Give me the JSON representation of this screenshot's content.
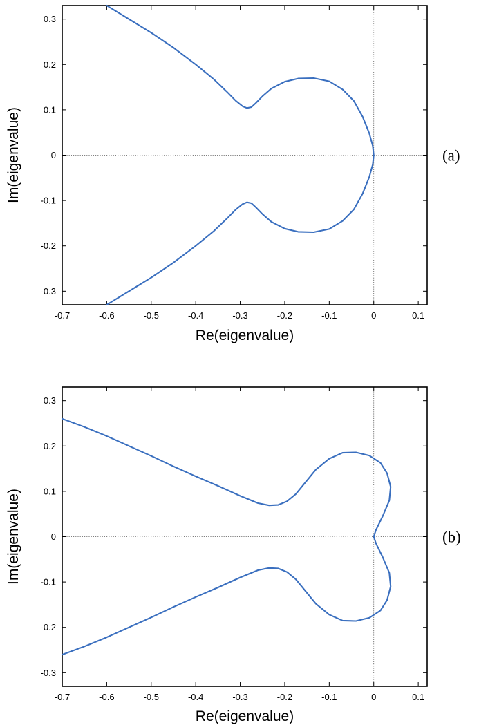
{
  "chart_data": [
    {
      "type": "line",
      "panel_label": "(a)",
      "xlabel": "Re(eigenvalue)",
      "ylabel": "Im(eigenvalue)",
      "xlim": [
        -0.7,
        0.12
      ],
      "ylim": [
        -0.33,
        0.33
      ],
      "xticks": [
        -0.7,
        -0.6,
        -0.5,
        -0.4,
        -0.3,
        -0.2,
        -0.1,
        0,
        0.1
      ],
      "xtick_labels": [
        "-0.7",
        "-0.6",
        "-0.5",
        "-0.4",
        "-0.3",
        "-0.2",
        "-0.1",
        "0",
        "0.1"
      ],
      "yticks": [
        -0.3,
        -0.2,
        -0.1,
        0,
        0.1,
        0.2,
        0.3
      ],
      "ytick_labels": [
        "-0.3",
        "-0.2",
        "-0.1",
        "0",
        "0.1",
        "0.2",
        "0.3"
      ],
      "zero_lines": true,
      "grid": false,
      "line_color": "#3a6fbf",
      "series": [
        {
          "x": [
            -0.6,
            -0.55,
            -0.5,
            -0.45,
            -0.4,
            -0.36,
            -0.33,
            -0.31,
            -0.295,
            -0.285,
            -0.275,
            -0.265,
            -0.25,
            -0.23,
            -0.2,
            -0.17,
            -0.135,
            -0.1,
            -0.07,
            -0.045,
            -0.025,
            -0.01,
            -0.002,
            0,
            -0.002,
            -0.01,
            -0.025,
            -0.045,
            -0.07,
            -0.1,
            -0.135,
            -0.17,
            -0.2,
            -0.23,
            -0.25,
            -0.265,
            -0.275,
            -0.285,
            -0.295,
            -0.31,
            -0.33,
            -0.36,
            -0.4,
            -0.45,
            -0.5,
            -0.55,
            -0.6
          ],
          "y": [
            0.33,
            0.3,
            0.27,
            0.237,
            0.2,
            0.168,
            0.14,
            0.12,
            0.108,
            0.104,
            0.106,
            0.115,
            0.13,
            0.147,
            0.162,
            0.169,
            0.17,
            0.163,
            0.145,
            0.12,
            0.085,
            0.048,
            0.02,
            0,
            -0.02,
            -0.048,
            -0.085,
            -0.12,
            -0.145,
            -0.163,
            -0.17,
            -0.169,
            -0.162,
            -0.147,
            -0.13,
            -0.115,
            -0.106,
            -0.104,
            -0.108,
            -0.12,
            -0.14,
            -0.168,
            -0.2,
            -0.237,
            -0.27,
            -0.3,
            -0.33
          ]
        }
      ]
    },
    {
      "type": "line",
      "panel_label": "(b)",
      "xlabel": "Re(eigenvalue)",
      "ylabel": "Im(eigenvalue)",
      "xlim": [
        -0.7,
        0.12
      ],
      "ylim": [
        -0.33,
        0.33
      ],
      "xticks": [
        -0.7,
        -0.6,
        -0.5,
        -0.4,
        -0.3,
        -0.2,
        -0.1,
        0,
        0.1
      ],
      "xtick_labels": [
        "-0.7",
        "-0.6",
        "-0.5",
        "-0.4",
        "-0.3",
        "-0.2",
        "-0.1",
        "0",
        "0.1"
      ],
      "yticks": [
        -0.3,
        -0.2,
        -0.1,
        0,
        0.1,
        0.2,
        0.3
      ],
      "ytick_labels": [
        "-0.3",
        "-0.2",
        "-0.1",
        "0",
        "0.1",
        "0.2",
        "0.3"
      ],
      "zero_lines": true,
      "grid": false,
      "line_color": "#3a6fbf",
      "series": [
        {
          "x": [
            -0.7,
            -0.65,
            -0.6,
            -0.55,
            -0.5,
            -0.45,
            -0.4,
            -0.35,
            -0.3,
            -0.26,
            -0.235,
            -0.215,
            -0.195,
            -0.175,
            -0.155,
            -0.13,
            -0.1,
            -0.07,
            -0.04,
            -0.01,
            0.015,
            0.03,
            0.038,
            0.035,
            0.02,
            0.005,
            0,
            0.005,
            0.02,
            0.035,
            0.038,
            0.03,
            0.015,
            -0.01,
            -0.04,
            -0.07,
            -0.1,
            -0.13,
            -0.155,
            -0.175,
            -0.195,
            -0.215,
            -0.235,
            -0.26,
            -0.3,
            -0.35,
            -0.4,
            -0.45,
            -0.5,
            -0.55,
            -0.6,
            -0.65,
            -0.7
          ],
          "y": [
            0.26,
            0.242,
            0.222,
            0.2,
            0.178,
            0.155,
            0.133,
            0.112,
            0.09,
            0.074,
            0.069,
            0.07,
            0.078,
            0.094,
            0.118,
            0.148,
            0.172,
            0.185,
            0.186,
            0.179,
            0.163,
            0.14,
            0.11,
            0.08,
            0.045,
            0.015,
            0,
            -0.015,
            -0.045,
            -0.08,
            -0.11,
            -0.14,
            -0.163,
            -0.179,
            -0.186,
            -0.185,
            -0.172,
            -0.148,
            -0.118,
            -0.094,
            -0.078,
            -0.07,
            -0.069,
            -0.074,
            -0.09,
            -0.112,
            -0.133,
            -0.155,
            -0.178,
            -0.2,
            -0.222,
            -0.242,
            -0.26
          ]
        }
      ]
    }
  ]
}
